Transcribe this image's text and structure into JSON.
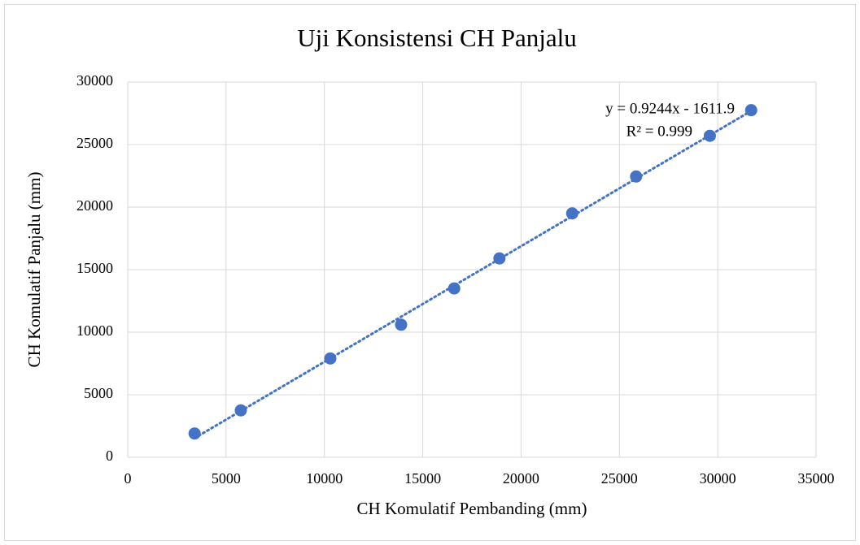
{
  "chart_data": {
    "type": "scatter",
    "title": "Uji Konsistensi CH Panjalu",
    "x_label": "CH Komulatif Pembanding (mm)",
    "y_label": "CH Komulatif Panjalu (mm)",
    "x": [
      3400,
      5750,
      10300,
      13900,
      16600,
      18900,
      22600,
      25850,
      29600,
      31700
    ],
    "series": [
      {
        "name": "CH Panjalu",
        "color": "#4472c4",
        "values": [
          1900,
          3750,
          7900,
          10600,
          13500,
          15900,
          19500,
          22450,
          25700,
          27750
        ]
      }
    ],
    "xlim": [
      0,
      35000
    ],
    "xticks": [
      0,
      5000,
      10000,
      15000,
      20000,
      25000,
      30000,
      35000
    ],
    "ylim": [
      0,
      30000
    ],
    "yticks": [
      0,
      5000,
      10000,
      15000,
      20000,
      25000,
      30000
    ],
    "grid": true,
    "legend": false,
    "trendline": {
      "slope": 0.9244,
      "intercept": -1611.9,
      "label": "y = 0.9244x - 1611.9",
      "r2": 0.999,
      "r2_label": "R² = 0.999"
    }
  }
}
